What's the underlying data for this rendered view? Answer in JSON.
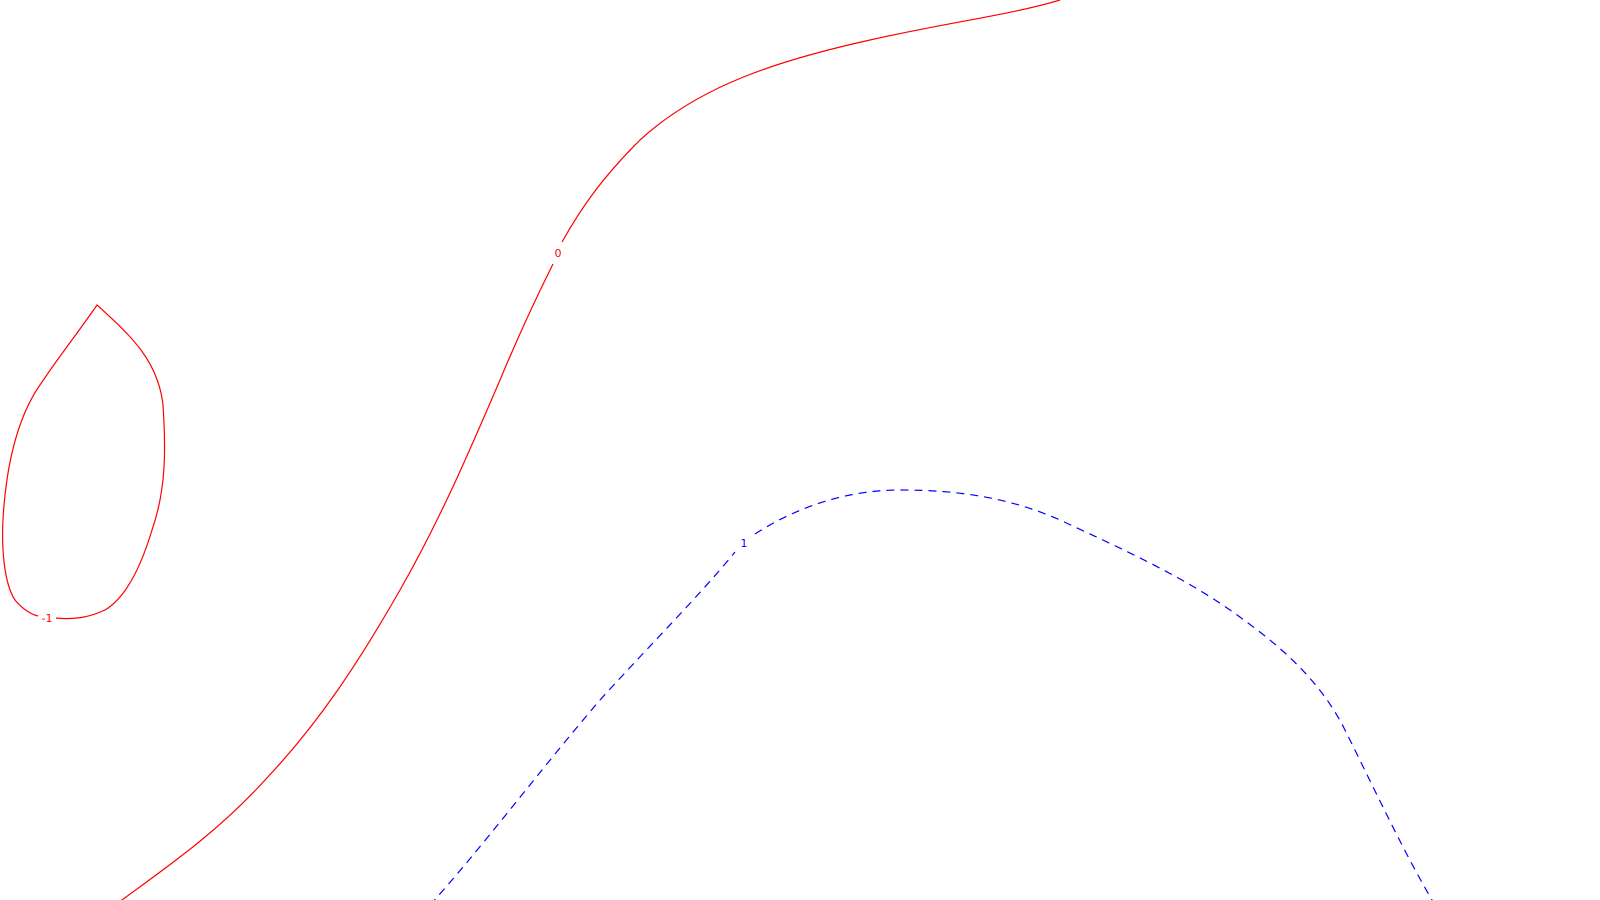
{
  "background_color": "#ffffff",
  "contours": [
    {
      "name": "contour-zero",
      "label": "0",
      "color": "#ff0000",
      "style": "solid"
    },
    {
      "name": "contour-minus-one",
      "label": "-1",
      "color": "#ff0000",
      "style": "solid"
    },
    {
      "name": "contour-one",
      "label": "1",
      "color": "#0000ff",
      "style": "dashed"
    }
  ]
}
